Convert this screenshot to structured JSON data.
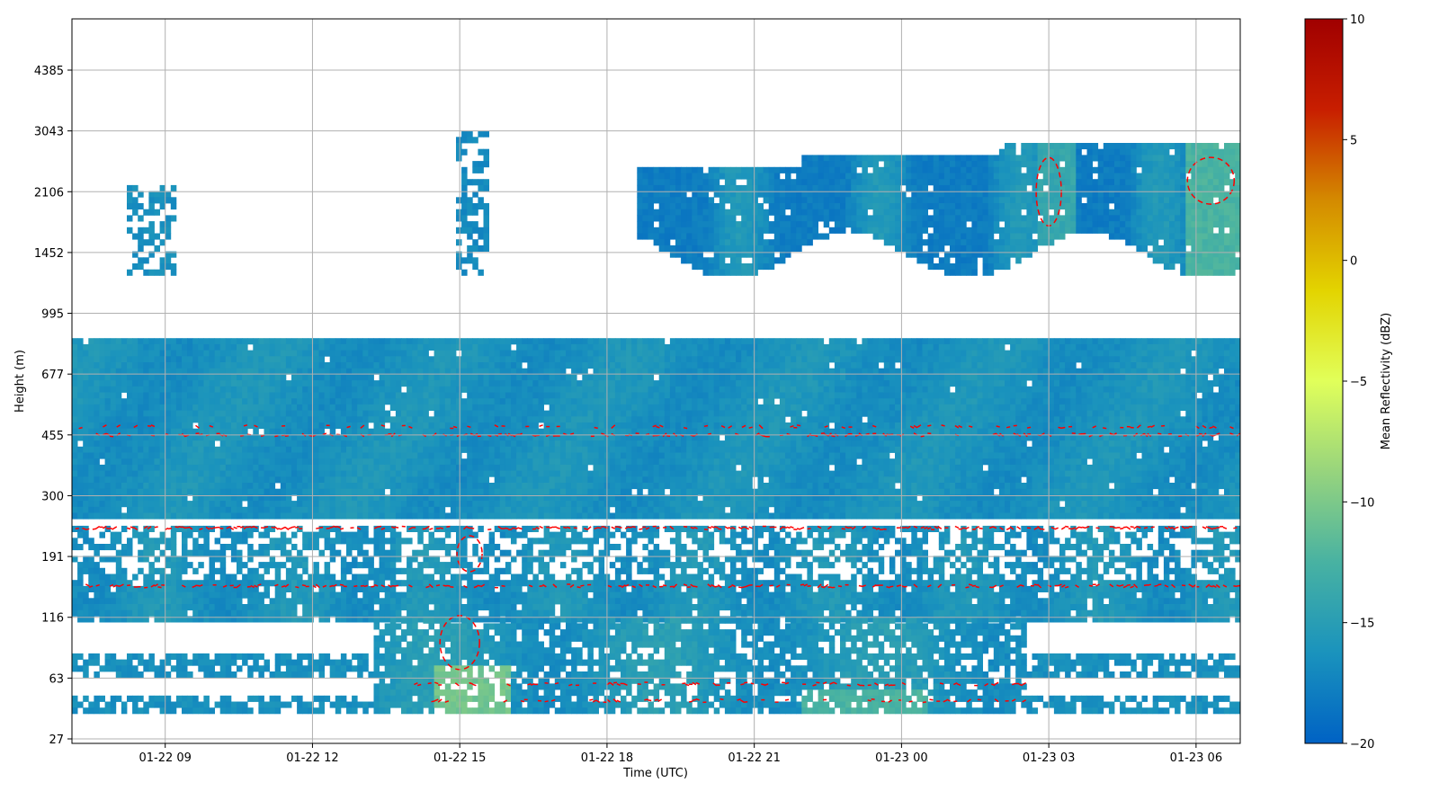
{
  "chart_data": {
    "type": "heatmap",
    "xlabel": "Time (UTC)",
    "ylabel": "Height (m)",
    "colorbar_label": "Mean Reflectivity (dBZ)",
    "colorbar_range": [
      -20,
      10
    ],
    "colorbar_ticks": [
      "10",
      "5",
      "0",
      "−5",
      "−10",
      "−15",
      "−20"
    ],
    "x_tick_labels": [
      "01-22 09",
      "01-22 12",
      "01-22 15",
      "01-22 18",
      "01-22 21",
      "01-23 00",
      "01-23 03",
      "01-23 06"
    ],
    "y_tick_labels": [
      "4385",
      "3043",
      "2106",
      "1452",
      "995",
      "677",
      "455",
      "300",
      "191",
      "116",
      "63",
      "27"
    ],
    "x_range_hours": [
      7.1,
      30.9
    ],
    "grid": true,
    "colormap": [
      "#0062c4",
      "#1a93bd",
      "#48b2a2",
      "#97d47d",
      "#e1ff5a",
      "#e3d400",
      "#d48a00",
      "#c81e00",
      "#a00000"
    ],
    "contour_color": "#ff0000",
    "layers": [
      {
        "name": "upper cloud layer",
        "height_range_m": [
          1452,
          3043
        ],
        "dbz_range": [
          -19,
          -11
        ]
      },
      {
        "name": "mid layer",
        "height_range_m": [
          300,
          850
        ],
        "dbz_range": [
          -17,
          -15
        ]
      },
      {
        "name": "lower layer",
        "height_range_m": [
          116,
          240
        ],
        "dbz_range": [
          -17,
          -15
        ]
      },
      {
        "name": "surface layer",
        "height_range_m": [
          40,
          116
        ],
        "dbz_range": [
          -16,
          -8
        ]
      }
    ]
  }
}
